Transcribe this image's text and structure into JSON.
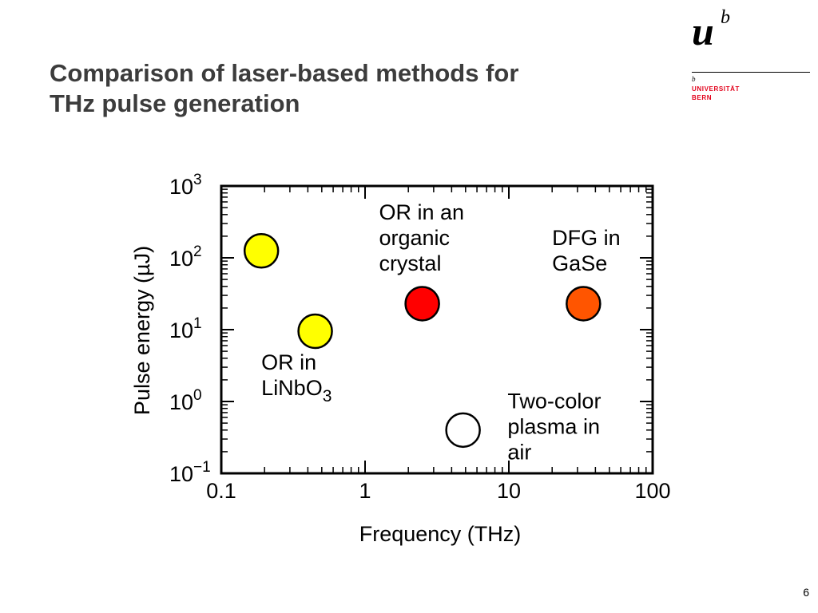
{
  "slide": {
    "title_line1": "Comparison of laser-based methods for",
    "title_line2": "THz pulse generation",
    "page_number": "6"
  },
  "logo": {
    "mark_u": "u",
    "mark_b": "b",
    "small_b": "b",
    "line1": "UNIVERSITÄT",
    "line2": "BERN",
    "accent_color": "#e2001a"
  },
  "chart_data": {
    "type": "scatter",
    "x_scale": "log",
    "y_scale": "log",
    "xlabel": "Frequency (THz)",
    "ylabel": "Pulse energy (µJ)",
    "xlim": [
      0.1,
      100
    ],
    "ylim": [
      0.1,
      1000
    ],
    "x_ticks": [
      {
        "value": 0.1,
        "label": "0.1"
      },
      {
        "value": 1,
        "label": "1"
      },
      {
        "value": 10,
        "label": "10"
      },
      {
        "value": 100,
        "label": "100"
      }
    ],
    "y_ticks": [
      {
        "value": 1000,
        "base": "10",
        "exp": "3"
      },
      {
        "value": 100,
        "base": "10",
        "exp": "2"
      },
      {
        "value": 10,
        "base": "10",
        "exp": "1"
      },
      {
        "value": 1,
        "base": "10",
        "exp": "0"
      },
      {
        "value": 0.1,
        "base": "10",
        "exp": "−1"
      }
    ],
    "grid": false,
    "points": [
      {
        "id": "or-linbo3-a",
        "x": 0.19,
        "y": 125,
        "color": "#ffff00"
      },
      {
        "id": "or-linbo3-b",
        "x": 0.45,
        "y": 9.5,
        "color": "#ffff00"
      },
      {
        "id": "or-organic",
        "x": 2.5,
        "y": 23,
        "color": "#ff0000"
      },
      {
        "id": "dfg-gase",
        "x": 33,
        "y": 23,
        "color": "#ff5500"
      },
      {
        "id": "two-color-plasma",
        "x": 4.8,
        "y": 0.4,
        "color": "#ffffff"
      }
    ],
    "annotations": [
      {
        "id": "or-linbo3",
        "lines": [
          "OR in",
          "LiNbO|3"
        ],
        "x": 0.19,
        "y": 2.8
      },
      {
        "id": "or-organic",
        "lines": [
          "OR in an",
          "organic",
          "crystal"
        ],
        "x": 1.25,
        "y": 340
      },
      {
        "id": "dfg-gase",
        "lines": [
          "DFG in",
          "GaSe"
        ],
        "x": 20,
        "y": 150
      },
      {
        "id": "two-color-plasma",
        "lines": [
          "Two-color",
          "plasma in",
          "air"
        ],
        "x": 9.8,
        "y": 0.8
      }
    ]
  }
}
